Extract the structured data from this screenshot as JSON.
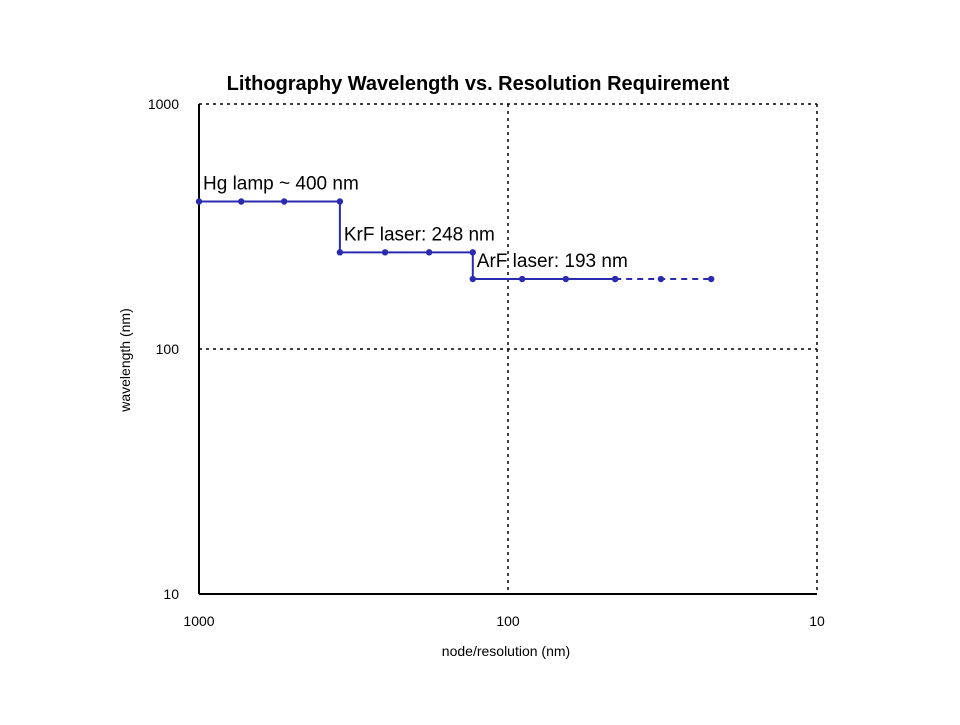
{
  "chart_data": {
    "type": "line",
    "title": "Lithography Wavelength vs. Resolution Requirement",
    "xlabel": "node/resolution (nm)",
    "ylabel": "wavelength (nm)",
    "x_scale": "log",
    "y_scale": "log",
    "x_reversed": true,
    "xlim": [
      1000,
      10
    ],
    "ylim": [
      10,
      1000
    ],
    "x_ticks": [
      1000,
      100,
      10
    ],
    "y_ticks": [
      1000,
      100,
      10
    ],
    "grid": true,
    "legend": "none",
    "series": [
      {
        "color": "#2b2bb0",
        "line": "solid",
        "points": [
          {
            "x": 1000,
            "y": 400
          },
          {
            "x": 730,
            "y": 400
          },
          {
            "x": 530,
            "y": 400
          },
          {
            "x": 350,
            "y": 400
          },
          {
            "x": 350,
            "y": 248
          },
          {
            "x": 250,
            "y": 248
          },
          {
            "x": 180,
            "y": 248
          },
          {
            "x": 130,
            "y": 248
          },
          {
            "x": 130,
            "y": 193
          },
          {
            "x": 90,
            "y": 193
          },
          {
            "x": 65,
            "y": 193
          },
          {
            "x": 45,
            "y": 193
          }
        ]
      },
      {
        "color": "#2b2bb0",
        "line": "dashed",
        "points": [
          {
            "x": 45,
            "y": 193
          },
          {
            "x": 32,
            "y": 193
          },
          {
            "x": 22,
            "y": 193
          }
        ]
      }
    ],
    "annotations": [
      {
        "text": "Hg lamp ~ 400 nm",
        "x": 1000,
        "y": 400
      },
      {
        "text": "KrF laser: 248 nm",
        "x": 350,
        "y": 248
      },
      {
        "text": "ArF laser: 193 nm",
        "x": 130,
        "y": 193
      }
    ]
  }
}
